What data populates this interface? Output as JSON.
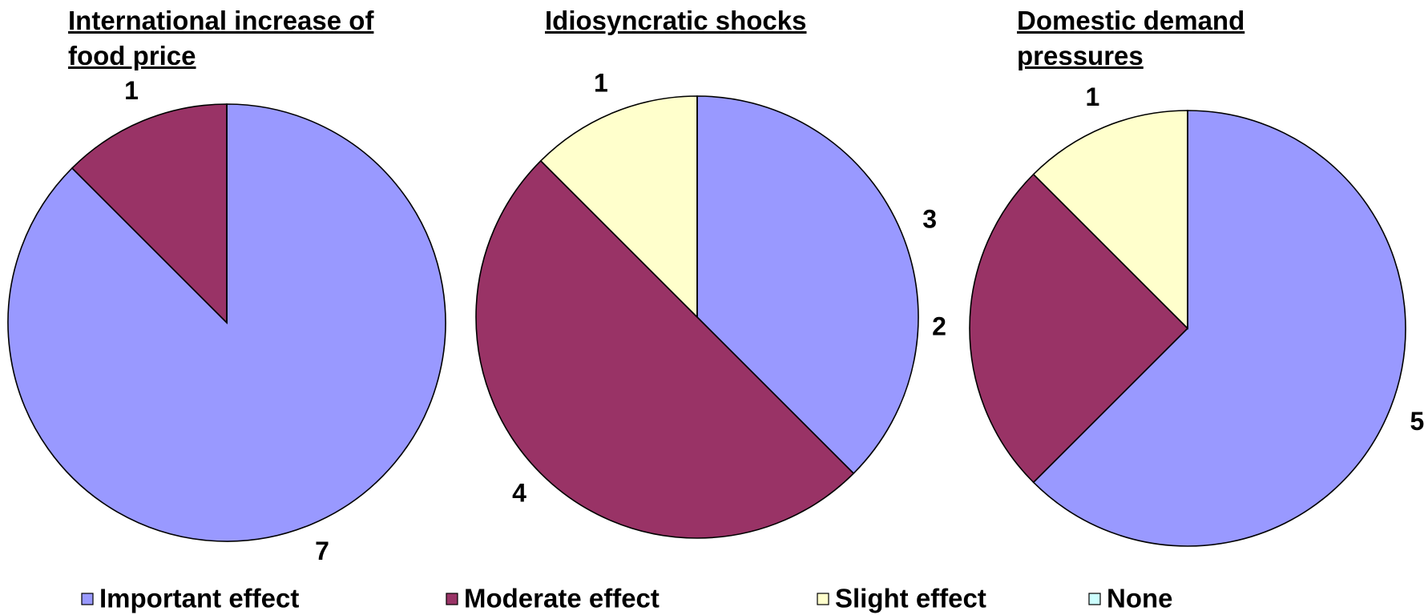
{
  "legend": {
    "labels": [
      "Important effect",
      "Moderate effect",
      "Slight effect",
      "None"
    ],
    "colors": [
      "#9999ff",
      "#993366",
      "#ffffcc",
      "#ccffff"
    ]
  },
  "chart_data": [
    {
      "type": "pie",
      "title": "International increase of food price",
      "values": [
        7,
        1,
        0,
        0
      ]
    },
    {
      "type": "pie",
      "title": "Idiosyncratic shocks",
      "values": [
        3,
        4,
        1,
        0
      ]
    },
    {
      "type": "pie",
      "title": "Domestic demand pressures",
      "values": [
        5,
        2,
        1,
        0
      ]
    }
  ]
}
